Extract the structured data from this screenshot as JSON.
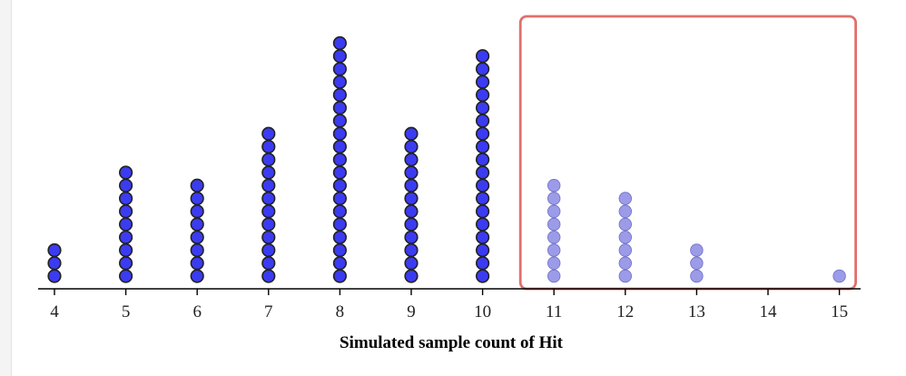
{
  "chart_data": {
    "type": "dot",
    "xlabel": "Simulated sample count of Hit",
    "xlim": [
      4,
      15
    ],
    "ticks": [
      4,
      5,
      6,
      7,
      8,
      9,
      10,
      11,
      12,
      13,
      14,
      15
    ],
    "tick_labels": [
      "4",
      "5",
      "6",
      "7",
      "8",
      "9",
      "10",
      "11",
      "12",
      "13",
      "14",
      "15"
    ],
    "counts": [
      {
        "x": 4,
        "n": 3
      },
      {
        "x": 5,
        "n": 9
      },
      {
        "x": 6,
        "n": 8
      },
      {
        "x": 7,
        "n": 12
      },
      {
        "x": 8,
        "n": 19
      },
      {
        "x": 9,
        "n": 12
      },
      {
        "x": 10,
        "n": 18
      },
      {
        "x": 11,
        "n": 8
      },
      {
        "x": 12,
        "n": 7
      },
      {
        "x": 13,
        "n": 3
      },
      {
        "x": 14,
        "n": 0
      },
      {
        "x": 15,
        "n": 1
      }
    ],
    "highlight": {
      "from": 11,
      "to": 15
    },
    "colors": {
      "dot": "#3b3bf2",
      "dot_highlight": "#9b9be8",
      "dot_outline": "#222222",
      "highlight_box": "#e0706a",
      "axis": "#000000"
    }
  }
}
